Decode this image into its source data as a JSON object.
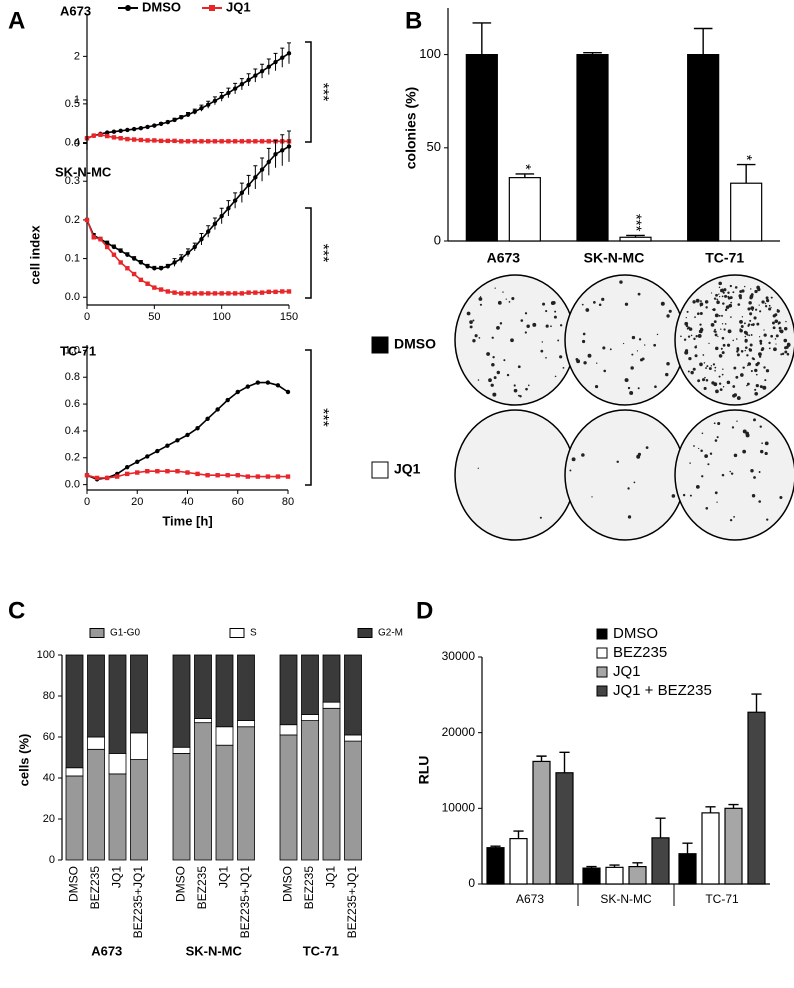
{
  "chart_data": [
    {
      "type": "line",
      "panel": "A",
      "title": "A673",
      "ylabel": "cell index",
      "annotation": "***",
      "x": [
        0,
        5,
        10,
        15,
        20,
        25,
        30,
        35,
        40,
        45,
        50,
        55,
        60,
        65,
        70,
        75,
        80,
        85,
        90,
        95,
        100,
        105,
        110,
        115,
        120,
        125,
        130,
        135,
        140,
        145,
        150
      ],
      "series": [
        {
          "name": "DMSO",
          "color": "#000000",
          "values": [
            0.12,
            0.18,
            0.22,
            0.25,
            0.27,
            0.29,
            0.31,
            0.33,
            0.35,
            0.38,
            0.41,
            0.45,
            0.49,
            0.54,
            0.6,
            0.66,
            0.73,
            0.81,
            0.89,
            0.98,
            1.07,
            1.16,
            1.26,
            1.36,
            1.46,
            1.56,
            1.66,
            1.76,
            1.87,
            1.97,
            2.07
          ],
          "errors": [
            0,
            0,
            0.01,
            0.01,
            0.01,
            0.01,
            0.01,
            0.01,
            0.02,
            0.02,
            0.02,
            0.03,
            0.03,
            0.04,
            0.04,
            0.05,
            0.06,
            0.07,
            0.08,
            0.09,
            0.1,
            0.11,
            0.12,
            0.13,
            0.14,
            0.15,
            0.16,
            0.18,
            0.2,
            0.22,
            0.24
          ]
        },
        {
          "name": "JQ1",
          "color": "#e8262a",
          "values": [
            0.12,
            0.18,
            0.2,
            0.17,
            0.14,
            0.12,
            0.1,
            0.09,
            0.08,
            0.07,
            0.07,
            0.06,
            0.06,
            0.06,
            0.05,
            0.05,
            0.05,
            0.05,
            0.05,
            0.05,
            0.05,
            0.05,
            0.05,
            0.05,
            0.05,
            0.05,
            0.05,
            0.05,
            0.05,
            0.05,
            0.05
          ]
        }
      ],
      "xlim": [
        0,
        150
      ],
      "ylim": [
        -0.15,
        2.95
      ],
      "yticks": [
        0,
        1,
        2
      ]
    },
    {
      "type": "line",
      "title": "SK-N-MC",
      "annotation": "***",
      "x": [
        0,
        5,
        10,
        15,
        20,
        25,
        30,
        35,
        40,
        45,
        50,
        55,
        60,
        65,
        70,
        75,
        80,
        85,
        90,
        95,
        100,
        105,
        110,
        115,
        120,
        125,
        130,
        135,
        140,
        145,
        150
      ],
      "series": [
        {
          "color": "#000000",
          "values": [
            0.2,
            0.16,
            0.15,
            0.14,
            0.13,
            0.12,
            0.11,
            0.1,
            0.09,
            0.08,
            0.075,
            0.075,
            0.08,
            0.09,
            0.1,
            0.115,
            0.13,
            0.15,
            0.17,
            0.19,
            0.21,
            0.23,
            0.25,
            0.27,
            0.29,
            0.31,
            0.33,
            0.35,
            0.37,
            0.38,
            0.39
          ],
          "errors": [
            0,
            0.005,
            0.005,
            0.005,
            0.005,
            0.005,
            0.005,
            0.005,
            0.005,
            0.005,
            0.005,
            0.005,
            0.005,
            0.01,
            0.01,
            0.01,
            0.01,
            0.015,
            0.015,
            0.015,
            0.02,
            0.02,
            0.02,
            0.025,
            0.025,
            0.03,
            0.03,
            0.035,
            0.035,
            0.04,
            0.04
          ]
        },
        {
          "color": "#e8262a",
          "values": [
            0.2,
            0.155,
            0.15,
            0.13,
            0.11,
            0.09,
            0.075,
            0.06,
            0.045,
            0.035,
            0.025,
            0.02,
            0.015,
            0.012,
            0.01,
            0.01,
            0.01,
            0.01,
            0.01,
            0.01,
            0.01,
            0.01,
            0.01,
            0.01,
            0.012,
            0.012,
            0.012,
            0.014,
            0.014,
            0.015,
            0.015
          ]
        }
      ],
      "xlim": [
        0,
        150
      ],
      "xticks": [
        0,
        50,
        100,
        150
      ],
      "ylim": [
        -0.02,
        0.51
      ],
      "yticks": [
        {
          "value": 0,
          "label": "0.0"
        },
        0.1,
        0.2,
        0.3,
        0.4,
        0.5
      ]
    },
    {
      "type": "line",
      "title": "TC-71",
      "xlabel": "Time [h]",
      "annotation": "***",
      "x": [
        0,
        4,
        8,
        12,
        16,
        20,
        24,
        28,
        32,
        36,
        40,
        44,
        48,
        52,
        56,
        60,
        64,
        68,
        72,
        76,
        80
      ],
      "series": [
        {
          "color": "#000000",
          "values": [
            0.07,
            0.04,
            0.05,
            0.08,
            0.13,
            0.17,
            0.21,
            0.25,
            0.29,
            0.33,
            0.37,
            0.42,
            0.49,
            0.56,
            0.63,
            0.69,
            0.73,
            0.76,
            0.76,
            0.74,
            0.69
          ]
        },
        {
          "color": "#e8262a",
          "values": [
            0.07,
            0.05,
            0.05,
            0.06,
            0.08,
            0.09,
            0.1,
            0.1,
            0.1,
            0.1,
            0.09,
            0.08,
            0.07,
            0.07,
            0.07,
            0.07,
            0.06,
            0.06,
            0.06,
            0.06,
            0.06
          ]
        }
      ],
      "xlim": [
        0,
        80
      ],
      "xticks": [
        0,
        20,
        40,
        60,
        80
      ],
      "ylim": [
        -0.04,
        1.04
      ],
      "yticks": [
        {
          "value": 0,
          "label": "0.0"
        },
        0.2,
        0.4,
        0.6,
        0.8,
        {
          "value": 1,
          "label": "1.0"
        }
      ]
    },
    {
      "type": "bar",
      "panel": "B",
      "ylabel": "colonies (%)",
      "categories": [
        "A673",
        "SK-N-MC",
        "TC-71"
      ],
      "series": [
        {
          "name": "DMSO",
          "color": "#000000",
          "values": [
            100,
            100,
            100
          ],
          "errors": [
            17,
            1,
            14
          ]
        },
        {
          "name": "JQ1",
          "color": "#ffffff",
          "values": [
            34,
            2,
            31
          ],
          "errors": [
            2,
            1,
            10
          ],
          "annotations": [
            "*",
            "***",
            "*"
          ]
        }
      ],
      "ylim": [
        0,
        125
      ],
      "yticks": [
        0,
        50,
        100
      ]
    },
    {
      "type": "stacked_bar",
      "panel": "C",
      "ylabel": "cells (%)",
      "categories": [
        "DMSO",
        "BEZ235",
        "JQ1",
        "BEZ235+JQ1",
        "DMSO",
        "BEZ235",
        "JQ1",
        "BEZ235+JQ1",
        "DMSO",
        "BEZ235",
        "JQ1",
        "BEZ235+JQ1"
      ],
      "groups": [
        "A673",
        "SK-N-MC",
        "TC-71"
      ],
      "series": [
        {
          "name": "G1-G0",
          "color": "#999999",
          "values": [
            41,
            54,
            42,
            49,
            52,
            67,
            56,
            65,
            61,
            68,
            74,
            58
          ]
        },
        {
          "name": "S",
          "color": "#ffffff",
          "values": [
            4,
            6,
            10,
            13,
            3,
            2,
            9,
            3,
            5,
            3,
            3,
            3
          ]
        },
        {
          "name": "G2-M",
          "color": "#3a3a3a",
          "values": [
            55,
            40,
            48,
            38,
            45,
            31,
            35,
            32,
            34,
            29,
            23,
            39
          ]
        }
      ],
      "ylim": [
        0,
        100
      ],
      "yticks": [
        0,
        20,
        40,
        60,
        80,
        100
      ]
    },
    {
      "type": "bar",
      "panel": "D",
      "ylabel": "RLU",
      "categories": [
        "A673",
        "SK-N-MC",
        "TC-71"
      ],
      "series": [
        {
          "name": "DMSO",
          "color": "#000000",
          "values": [
            4800,
            2100,
            4000
          ],
          "errors": [
            200,
            200,
            1400
          ]
        },
        {
          "name": "BEZ235",
          "color": "#ffffff",
          "values": [
            6000,
            2200,
            9400
          ],
          "errors": [
            1000,
            300,
            800
          ]
        },
        {
          "name": "JQ1",
          "color": "#a6a6a6",
          "values": [
            16200,
            2300,
            10000
          ],
          "errors": [
            700,
            500,
            500
          ]
        },
        {
          "name": "JQ1 + BEZ235",
          "color": "#444444",
          "values": [
            14700,
            6100,
            22700
          ],
          "errors": [
            2700,
            2600,
            2400
          ]
        }
      ],
      "ylim": [
        0,
        30000
      ],
      "yticks": [
        0,
        10000,
        20000,
        30000
      ]
    }
  ]
}
